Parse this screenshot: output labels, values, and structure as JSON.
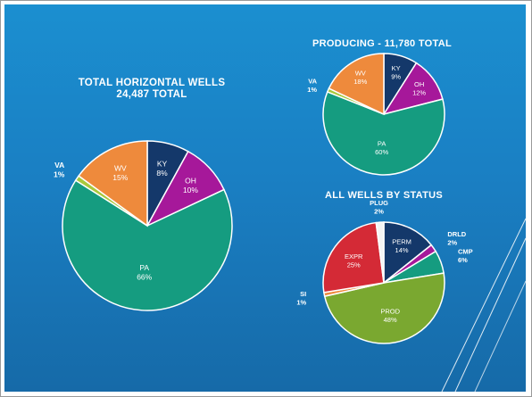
{
  "slide": {
    "background": "#1a80c4",
    "accent_lines": "#ffffff"
  },
  "chart_data": [
    {
      "type": "pie",
      "title": "TOTAL HORIZONTAL WELLS",
      "subtitle": "24,487 TOTAL",
      "series": [
        {
          "label": "KY",
          "value": 8,
          "display": "8%",
          "color": "#14386a"
        },
        {
          "label": "OH",
          "value": 10,
          "display": "10%",
          "color": "#a6189a"
        },
        {
          "label": "PA",
          "value": 66,
          "display": "66%",
          "color": "#159c80"
        },
        {
          "label": "VA",
          "value": 1,
          "display": "1%",
          "color": "#a8c83c"
        },
        {
          "label": "WV",
          "value": 15,
          "display": "15%",
          "color": "#ee8a3c"
        }
      ]
    },
    {
      "type": "pie",
      "title": "PRODUCING - 11,780 TOTAL",
      "series": [
        {
          "label": "KY",
          "value": 9,
          "display": "9%",
          "color": "#14386a"
        },
        {
          "label": "OH",
          "value": 12,
          "display": "12%",
          "color": "#a6189a"
        },
        {
          "label": "PA",
          "value": 60,
          "display": "60%",
          "color": "#159c80"
        },
        {
          "label": "VA",
          "value": 1,
          "display": "1%",
          "color": "#a8c83c"
        },
        {
          "label": "WV",
          "value": 18,
          "display": "18%",
          "color": "#ee8a3c"
        }
      ]
    },
    {
      "type": "pie",
      "title": "ALL WELLS BY STATUS",
      "series": [
        {
          "label": "PERM",
          "value": 14,
          "display": "14%",
          "color": "#14386a"
        },
        {
          "label": "DRLD",
          "value": 2,
          "display": "2%",
          "color": "#a6189a"
        },
        {
          "label": "CMP",
          "value": 6,
          "display": "6%",
          "color": "#159c80"
        },
        {
          "label": "PROD",
          "value": 48,
          "display": "48%",
          "color": "#7aa830"
        },
        {
          "label": "SI",
          "value": 1,
          "display": "1%",
          "color": "#ee8a3c"
        },
        {
          "label": "EXPR",
          "value": 25,
          "display": "25%",
          "color": "#d42a36"
        },
        {
          "label": "PLUG",
          "value": 2,
          "display": "2%",
          "color": "#f4f4f4"
        }
      ]
    }
  ]
}
